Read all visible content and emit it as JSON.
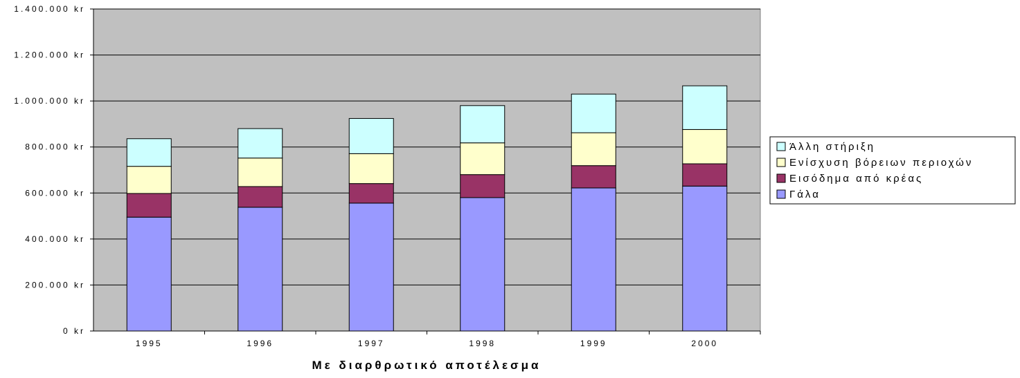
{
  "chart_data": {
    "type": "bar",
    "stacked": true,
    "categories": [
      "1995",
      "1996",
      "1997",
      "1998",
      "1999",
      "2000"
    ],
    "series": [
      {
        "name": "Γάλα",
        "values": [
          495000,
          538000,
          556000,
          580000,
          622000,
          630000
        ],
        "color": "#9999ff"
      },
      {
        "name": "Εισόδημα από κρέας",
        "values": [
          103000,
          90000,
          85000,
          100000,
          97000,
          97000
        ],
        "color": "#993366"
      },
      {
        "name": "Ενίσχυση βόρειων περιοχών",
        "values": [
          118000,
          124000,
          130000,
          138000,
          143000,
          149000
        ],
        "color": "#ffffcc"
      },
      {
        "name": "Άλλη στήριξη",
        "values": [
          120000,
          128000,
          153000,
          162000,
          168000,
          190000
        ],
        "color": "#ccffff"
      }
    ],
    "title": "",
    "xlabel": "Με διαρθρωτικό αποτέλεσμα",
    "ylabel": "",
    "ylim": [
      0,
      1400000
    ],
    "y_tick_labels": [
      "0 kr",
      "200.000 kr",
      "400.000 kr",
      "600.000 kr",
      "800.000 kr",
      "1.000.000 kr",
      "1.200.000 kr",
      "1.400.000 kr"
    ],
    "y_tick_values": [
      0,
      200000,
      400000,
      600000,
      800000,
      1000000,
      1200000,
      1400000
    ],
    "grid": true,
    "legend_position": "right",
    "legend_order": [
      "Άλλη στήριξη",
      "Ενίσχυση βόρειων περιοχών",
      "Εισόδημα από κρέας",
      "Γάλα"
    ],
    "plot_background": "#c0c0c0"
  }
}
